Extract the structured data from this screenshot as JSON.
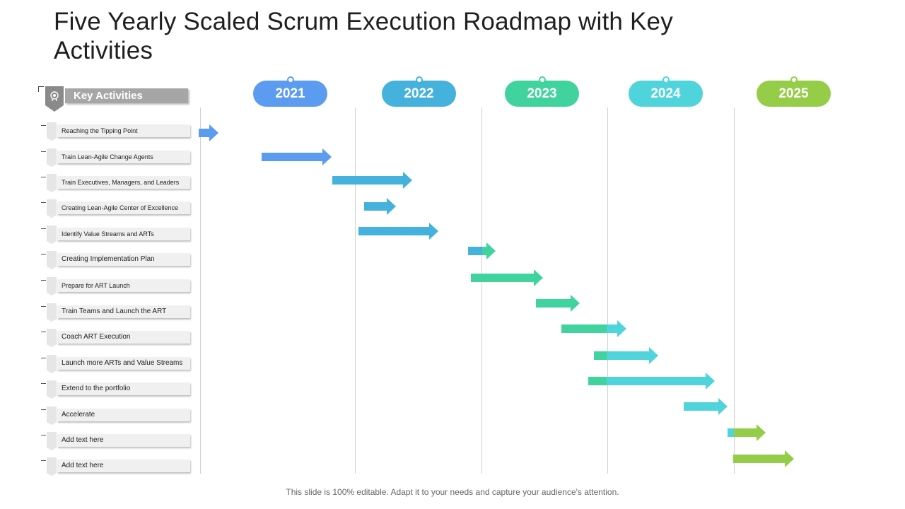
{
  "title": "Five Yearly Scaled Scrum Execution Roadmap with Key Activities",
  "key_activities_label": "Key Activities",
  "years": [
    {
      "label": "2021",
      "color": "#5b9bf0"
    },
    {
      "label": "2022",
      "color": "#45b1dd"
    },
    {
      "label": "2023",
      "color": "#40d39d"
    },
    {
      "label": "2024",
      "color": "#4fd4dc"
    },
    {
      "label": "2025",
      "color": "#95cc48"
    }
  ],
  "activities": [
    {
      "label": "Reaching the Tipping Point"
    },
    {
      "label": "Train Lean-Agile Change Agents"
    },
    {
      "label": "Train Executives, Managers, and Leaders"
    },
    {
      "label": "Creating Lean-Agile Center of Excellence"
    },
    {
      "label": "Identify Value Streams and ARTs"
    },
    {
      "label": "Creating Implementation  Plan"
    },
    {
      "label": "Prepare  for ART Launch"
    },
    {
      "label": "Train Teams  and Launch the ART"
    },
    {
      "label": "Coach ART Execution"
    },
    {
      "label": "Launch more  ARTs and Value Streams"
    },
    {
      "label": "Extend to the portfolio"
    },
    {
      "label": "Accelerate"
    },
    {
      "label": "Add text here"
    },
    {
      "label": "Add text here"
    }
  ],
  "footer": "This slide is 100% editable. Adapt it to your needs and capture your audience's attention."
}
